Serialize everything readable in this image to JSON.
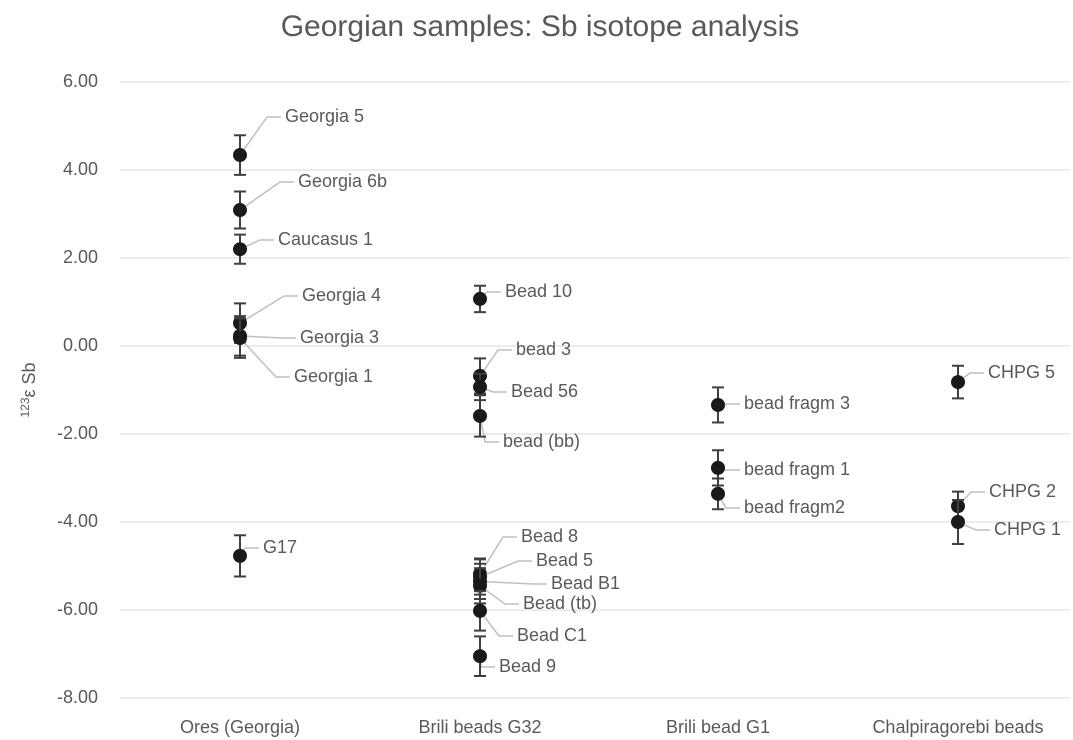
{
  "chart_data": {
    "type": "scatter",
    "title": "Georgian samples:  Sb isotope analysis",
    "y_label": {
      "superscript": "123",
      "text": "ε Sb"
    },
    "ylim": [
      -8,
      6
    ],
    "yticks": [
      {
        "value": -8,
        "label": "-8.00"
      },
      {
        "value": -6,
        "label": "-6.00"
      },
      {
        "value": -4,
        "label": "-4.00"
      },
      {
        "value": -2,
        "label": "-2.00"
      },
      {
        "value": 0,
        "label": "0.00"
      },
      {
        "value": 2,
        "label": "2.00"
      },
      {
        "value": 4,
        "label": "4.00"
      },
      {
        "value": 6,
        "label": "6.00"
      }
    ],
    "grid": true,
    "color": "#1a1a1a",
    "groups": [
      {
        "category": "Ores (Georgia)",
        "labels": [
          "Georgia 5",
          "Georgia 6b",
          "Caucasus 1",
          "Georgia 4",
          "Georgia 3",
          "Georgia 1",
          "G17"
        ],
        "values": [
          4.34,
          3.09,
          2.2,
          0.52,
          0.23,
          0.18,
          -4.77
        ],
        "errors": [
          0.45,
          0.42,
          0.33,
          0.45,
          0.45,
          0.45,
          0.47
        ]
      },
      {
        "category": "Brili beads G32",
        "labels": [
          "Bead 10",
          "bead 3",
          "Bead 56",
          "bead (bb)",
          "Bead 8",
          "Bead 5",
          "Bead B1",
          "Bead (tb)",
          "Bead C1",
          "Bead 9"
        ],
        "values": [
          1.07,
          -0.68,
          -0.93,
          -1.59,
          -5.18,
          -5.25,
          -5.35,
          -5.45,
          -6.02,
          -7.05
        ],
        "errors": [
          0.3,
          0.4,
          0.3,
          0.47,
          0.35,
          0.4,
          0.4,
          0.4,
          0.45,
          0.45
        ]
      },
      {
        "category": "Brili bead G1",
        "labels": [
          "bead fragm 3",
          "bead fragm 1",
          "bead fragm2"
        ],
        "values": [
          -1.34,
          -2.77,
          -3.36
        ],
        "errors": [
          0.4,
          0.4,
          0.35
        ]
      },
      {
        "category": "Chalpiragorebi beads",
        "labels": [
          "CHPG 5",
          "CHPG 2",
          "CHPG 1"
        ],
        "values": [
          -0.82,
          -3.64,
          -4.0
        ],
        "errors": [
          0.37,
          0.33,
          0.5
        ]
      }
    ]
  }
}
